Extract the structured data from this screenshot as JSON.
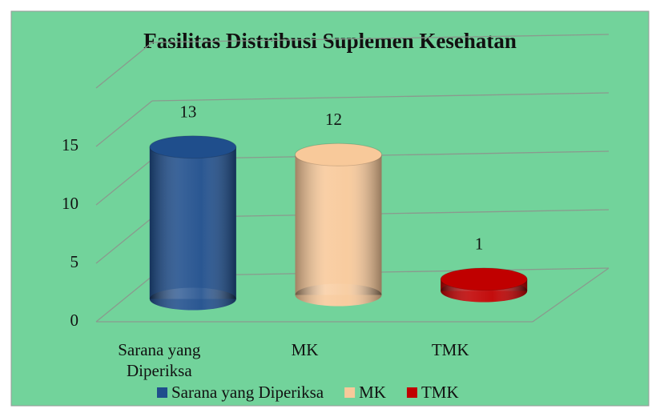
{
  "chart_data": {
    "type": "bar3d",
    "title": "Fasilitas Distribusi Suplemen Kesehatan",
    "categories": [
      "Sarana yang Diperiksa",
      "MK",
      "TMK"
    ],
    "series": [
      {
        "name": "Sarana yang Diperiksa",
        "color": "#1f4e8c"
      },
      {
        "name": "MK",
        "color": "#f8c99a"
      },
      {
        "name": "TMK",
        "color": "#c00000"
      }
    ],
    "values": [
      13,
      12,
      1
    ],
    "ylim": [
      0,
      20
    ],
    "yticks": [
      0,
      5,
      10,
      15
    ],
    "grid": true
  }
}
